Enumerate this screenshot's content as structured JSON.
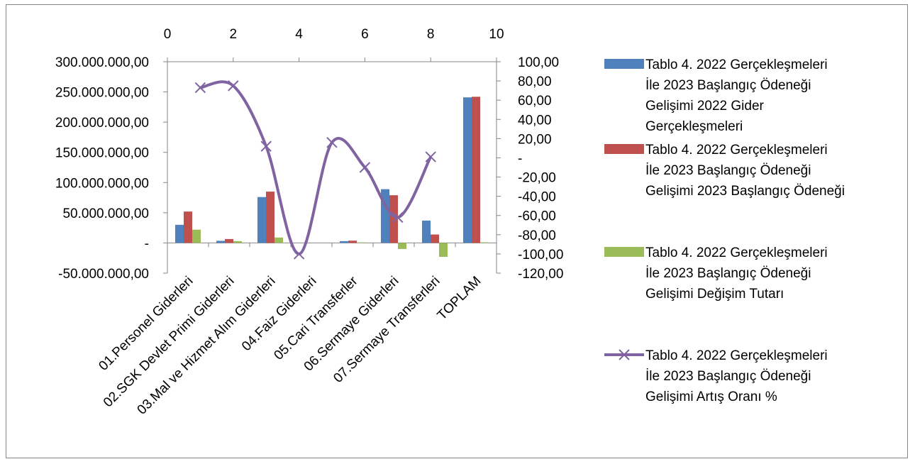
{
  "chart_data": {
    "type": "bar",
    "categories": [
      "01.Personel Giderleri",
      "02.SGK Devlet Primi Giderleri",
      "03.Mal ve Hizmet Alım Giderleri",
      "04.Faiz Giderleri",
      "05.Cari Transferler",
      "06.Sermaye Giderleri",
      "07.Sermaye Transferleri",
      "TOPLAM"
    ],
    "series": [
      {
        "name": "Tablo 4. 2022 Gerçekleşmeleri İle 2023 Başlangıç Ödeneği Gelişimi 2022 Gider Gerçekleşmeleri",
        "type": "bar",
        "axis": "left",
        "color": "#4F81BD",
        "values": [
          30000000,
          3500000,
          76000000,
          0,
          3000000,
          89000000,
          37000000,
          241000000
        ]
      },
      {
        "name": "Tablo 4. 2022 Gerçekleşmeleri İle 2023 Başlangıç Ödeneği Gelişimi 2023 Başlangıç Ödeneği",
        "type": "bar",
        "axis": "left",
        "color": "#C0504D",
        "values": [
          52000000,
          6500000,
          85000000,
          0,
          3800000,
          79000000,
          14000000,
          242000000
        ]
      },
      {
        "name": "Tablo 4. 2022 Gerçekleşmeleri İle 2023 Başlangıç Ödeneği Gelişimi Değişim Tutarı",
        "type": "bar",
        "axis": "left",
        "color": "#9BBB59",
        "values": [
          22000000,
          3000000,
          9000000,
          0,
          800000,
          -10000000,
          -23000000,
          1000000
        ]
      },
      {
        "name": "Tablo 4. 2022 Gerçekleşmeleri İle 2023 Başlangıç Ödeneği Gelişimi Artış Oranı %",
        "type": "scatter-smooth",
        "axis": "right",
        "color": "#8064A2",
        "marker": "x",
        "x": [
          1,
          2,
          3,
          4,
          5,
          6,
          7,
          8
        ],
        "values": [
          73,
          75,
          12,
          -100,
          16,
          -10,
          -62,
          1
        ]
      }
    ],
    "y_left": {
      "ylim": [
        -50000000,
        300000000
      ],
      "ticks": [
        300000000,
        250000000,
        200000000,
        150000000,
        100000000,
        50000000,
        0,
        -50000000
      ],
      "tick_labels": [
        "300.000.000,00",
        "250.000.000,00",
        "200.000.000,00",
        "150.000.000,00",
        "100.000.000,00",
        "50.000.000,00",
        "-",
        "-50.000.000,00"
      ]
    },
    "y_right": {
      "ylim": [
        -120,
        100
      ],
      "ticks": [
        100,
        80,
        60,
        40,
        20,
        0,
        -20,
        -40,
        -60,
        -80,
        -100,
        -120
      ],
      "tick_labels": [
        "100,00",
        "80,00",
        "60,00",
        "40,00",
        "20,00",
        "-",
        "-20,00",
        "-40,00",
        "-60,00",
        "-80,00",
        "-100,00",
        "-120,00"
      ]
    },
    "x_top": {
      "xlim": [
        0,
        10
      ],
      "ticks": [
        0,
        2,
        4,
        6,
        8,
        10
      ],
      "tick_labels": [
        "0",
        "2",
        "4",
        "6",
        "8",
        "10"
      ]
    },
    "legend": {
      "placement": "right",
      "entries": [
        [
          "Tablo 4. 2022 Gerçekleşmeleri",
          "İle 2023 Başlangıç Ödeneği",
          "Gelişimi 2022 Gider",
          "Gerçekleşmeleri"
        ],
        [
          "Tablo 4. 2022 Gerçekleşmeleri",
          "İle 2023 Başlangıç Ödeneği",
          "Gelişimi 2023 Başlangıç Ödeneği"
        ],
        [
          "Tablo 4. 2022 Gerçekleşmeleri",
          "İle 2023 Başlangıç Ödeneği",
          "Gelişimi Değişim Tutarı"
        ],
        [
          "Tablo 4. 2022 Gerçekleşmeleri",
          "İle 2023 Başlangıç Ödeneği",
          "Gelişimi Artış Oranı %"
        ]
      ]
    },
    "grid": false,
    "title": "",
    "xlabel": "",
    "ylabel": ""
  }
}
